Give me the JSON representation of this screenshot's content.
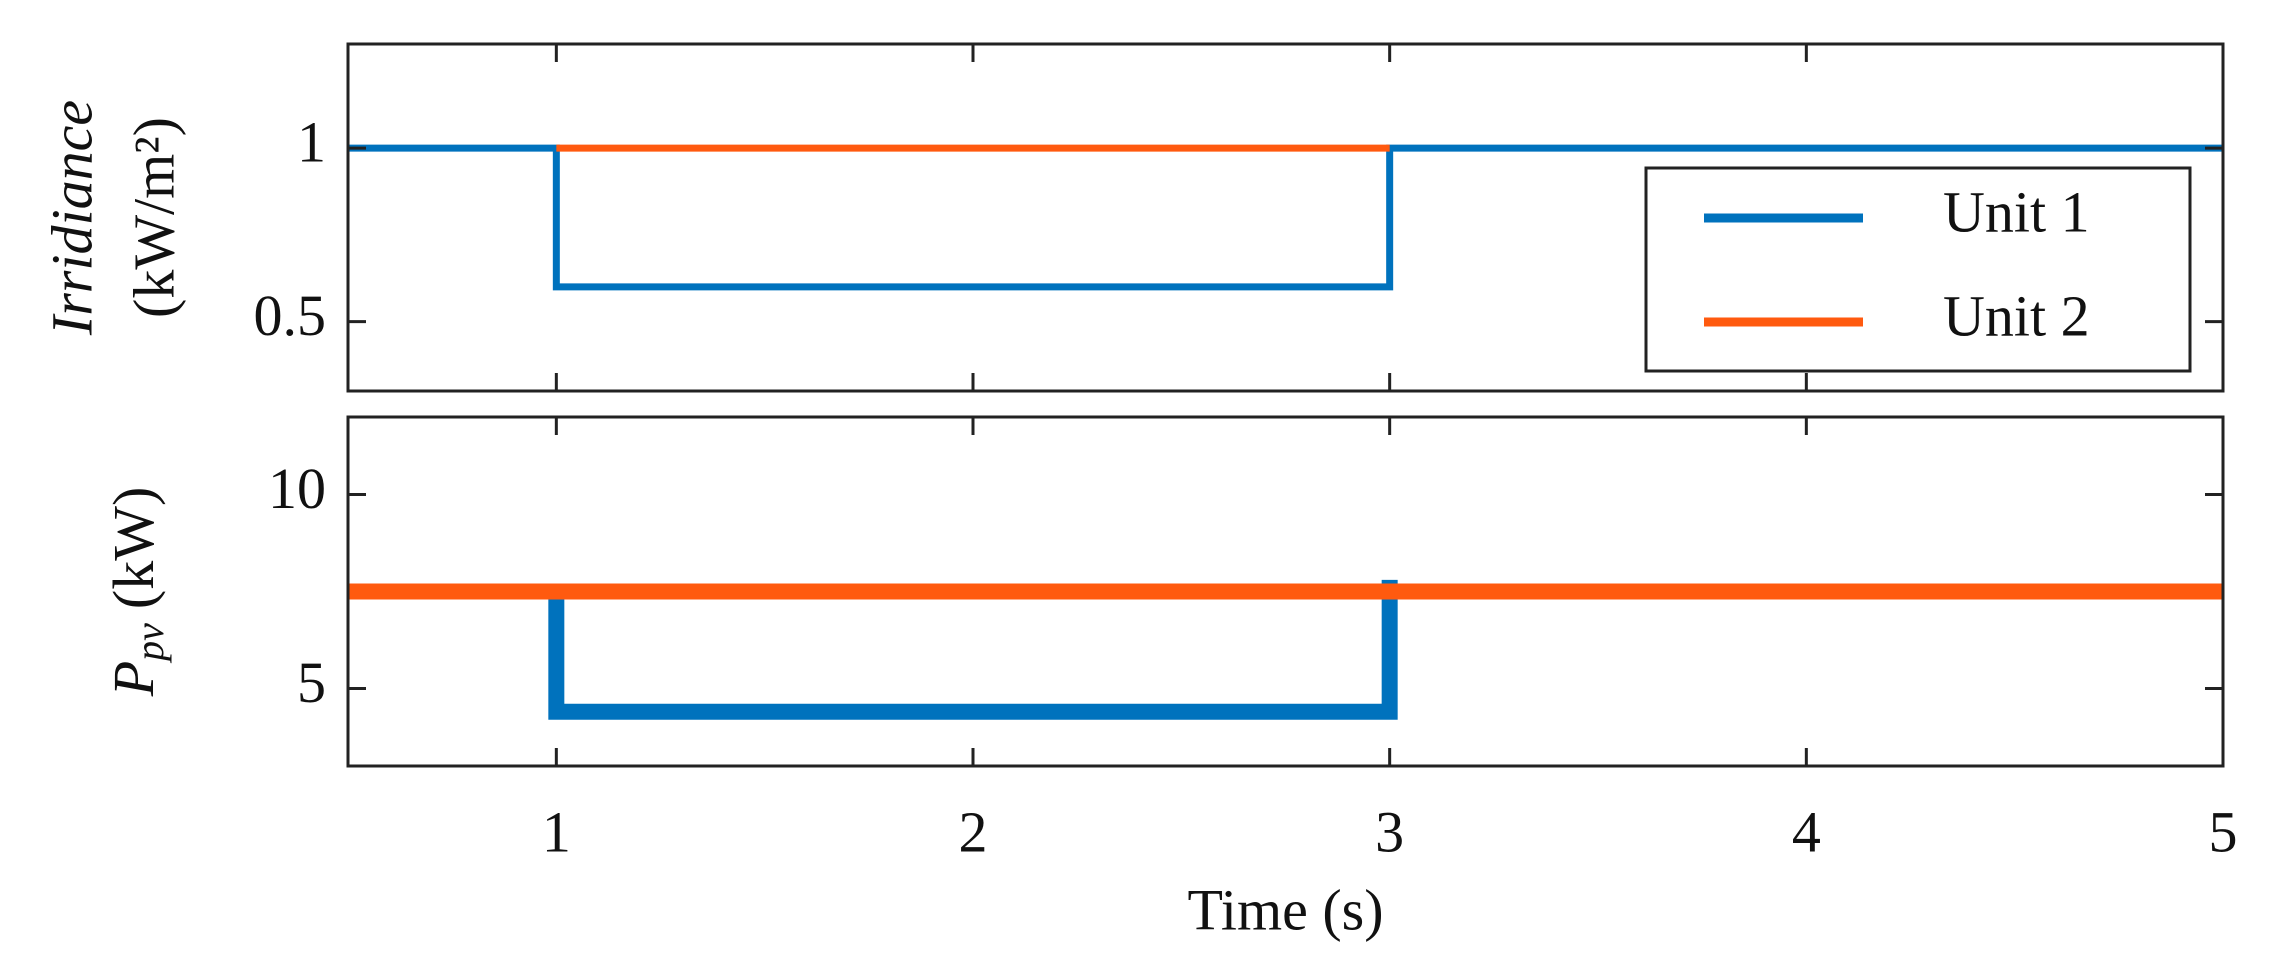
{
  "chart_data": [
    {
      "type": "line",
      "ylabel": {
        "name": "Irridiance",
        "unit": "(kW/m²)"
      },
      "xlim": [
        0.5,
        5
      ],
      "xticks": [
        1,
        2,
        3,
        4,
        5
      ],
      "ylim": [
        0.3,
        1.3
      ],
      "yticks": [
        0.5,
        1
      ],
      "legend": "right",
      "series": [
        {
          "name": "Unit 1",
          "color": "#0072bd",
          "x": [
            0.5,
            1,
            1,
            3,
            3,
            5
          ],
          "values": [
            1,
            1,
            0.6,
            0.6,
            1,
            1
          ]
        },
        {
          "name": "Unit 2",
          "color": "#ff5a0f",
          "x": [
            1,
            3
          ],
          "values": [
            1,
            1
          ]
        }
      ]
    },
    {
      "type": "line",
      "ylabel": {
        "symbol": "P",
        "subscript": "pv",
        "unit": "(kW)"
      },
      "xlabel": "Time (s)",
      "xlim": [
        0.5,
        5
      ],
      "xticks": [
        1,
        2,
        3,
        4,
        5
      ],
      "ylim": [
        3,
        12
      ],
      "yticks": [
        5,
        10
      ],
      "series": [
        {
          "name": "Unit 1",
          "color": "#0072bd",
          "x": [
            0.5,
            1,
            1,
            3,
            3,
            3,
            5
          ],
          "values": [
            7.5,
            7.5,
            4.4,
            4.4,
            7.8,
            7.5,
            7.5
          ]
        },
        {
          "name": "Unit 2",
          "color": "#ff5a0f",
          "x": [
            0.5,
            5
          ],
          "values": [
            7.5,
            7.5
          ]
        }
      ]
    }
  ]
}
